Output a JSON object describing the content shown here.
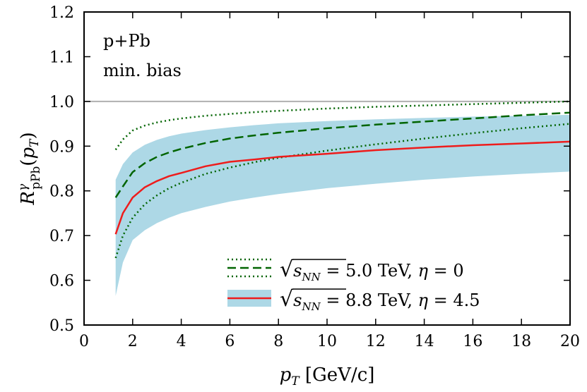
{
  "chart_data": {
    "type": "line",
    "title": "",
    "xlabel": "p_T [GeV/c]",
    "xlabel_parts": {
      "var": "p",
      "sub": "T",
      "unit": " [GeV/c]"
    },
    "ylabel": "R^γ_pPb(p_T)",
    "ylabel_parts": {
      "var": "R",
      "sup": "γ",
      "sub": "pPb",
      "arg_open": "(",
      "arg_var": "p",
      "arg_sub": "T",
      "arg_close": ")"
    },
    "xlim": [
      0,
      20
    ],
    "ylim": [
      0.5,
      1.2
    ],
    "xticks": [
      "0",
      "2",
      "4",
      "6",
      "8",
      "10",
      "12",
      "14",
      "16",
      "18",
      "20"
    ],
    "yticks": [
      "0.5",
      "0.6",
      "0.7",
      "0.8",
      "0.9",
      "1.0",
      "1.1",
      "1.2"
    ],
    "annotations": [
      "p+Pb",
      "min. bias"
    ],
    "reference_line": {
      "y": 1.0,
      "color": "#b0b0b0"
    },
    "legend": {
      "placement": "bottom-right",
      "entries": [
        {
          "label": "√s_NN = 5.0 TeV, η = 0",
          "pre": "= 5.0 TeV, ",
          "greek": "η",
          "post": " = 0"
        },
        {
          "label": "√s_NN = 8.8 TeV, η = 4.5",
          "pre": "= 8.8 TeV, ",
          "greek": "η",
          "post": " = 4.5"
        }
      ],
      "sqrt_var": "s",
      "sqrt_sub": "NN"
    },
    "series": [
      {
        "name": "√s_NN = 5.0 TeV, η = 0",
        "style": "dashed",
        "color": "#006400",
        "x": [
          1.3,
          1.6,
          2,
          2.5,
          3,
          3.5,
          4,
          5,
          6,
          7,
          8,
          10,
          12,
          14,
          16,
          18,
          20
        ],
        "y": [
          0.785,
          0.81,
          0.842,
          0.862,
          0.876,
          0.886,
          0.894,
          0.907,
          0.917,
          0.924,
          0.93,
          0.94,
          0.948,
          0.955,
          0.962,
          0.969,
          0.975
        ]
      },
      {
        "name": "5.0 TeV upper bound",
        "style": "dotted",
        "color": "#006400",
        "x": [
          1.3,
          1.6,
          2,
          2.5,
          3,
          3.5,
          4,
          5,
          6,
          7,
          8,
          10,
          12,
          14,
          16,
          18,
          20
        ],
        "y": [
          0.892,
          0.915,
          0.935,
          0.946,
          0.953,
          0.958,
          0.962,
          0.968,
          0.972,
          0.976,
          0.979,
          0.984,
          0.988,
          0.991,
          0.994,
          0.997,
          1.0
        ]
      },
      {
        "name": "5.0 TeV lower bound",
        "style": "dotted",
        "color": "#006400",
        "x": [
          1.3,
          1.6,
          2,
          2.5,
          3,
          3.5,
          4,
          5,
          6,
          7,
          8,
          10,
          12,
          14,
          16,
          18,
          20
        ],
        "y": [
          0.65,
          0.7,
          0.74,
          0.77,
          0.79,
          0.806,
          0.818,
          0.838,
          0.852,
          0.864,
          0.874,
          0.89,
          0.904,
          0.917,
          0.929,
          0.94,
          0.95
        ]
      },
      {
        "name": "√s_NN = 8.8 TeV, η = 4.5",
        "style": "solid",
        "color": "#ee1c1c",
        "x": [
          1.3,
          1.6,
          2,
          2.5,
          3,
          3.5,
          4,
          5,
          6,
          7,
          8,
          10,
          12,
          14,
          16,
          18,
          20
        ],
        "y": [
          0.703,
          0.75,
          0.785,
          0.808,
          0.822,
          0.833,
          0.84,
          0.855,
          0.865,
          0.87,
          0.876,
          0.883,
          0.891,
          0.897,
          0.902,
          0.906,
          0.91
        ]
      }
    ],
    "band": {
      "name": "8.8 TeV uncertainty band",
      "color": "#add8e6",
      "x": [
        1.3,
        1.6,
        2,
        2.5,
        3,
        3.5,
        4,
        5,
        6,
        7,
        8,
        10,
        12,
        14,
        16,
        18,
        20
      ],
      "upper": [
        0.825,
        0.86,
        0.886,
        0.903,
        0.914,
        0.922,
        0.928,
        0.936,
        0.942,
        0.947,
        0.951,
        0.956,
        0.96,
        0.963,
        0.966,
        0.968,
        0.97
      ],
      "lower": [
        0.565,
        0.64,
        0.69,
        0.712,
        0.728,
        0.74,
        0.75,
        0.764,
        0.776,
        0.785,
        0.793,
        0.806,
        0.816,
        0.825,
        0.832,
        0.838,
        0.843
      ]
    }
  }
}
